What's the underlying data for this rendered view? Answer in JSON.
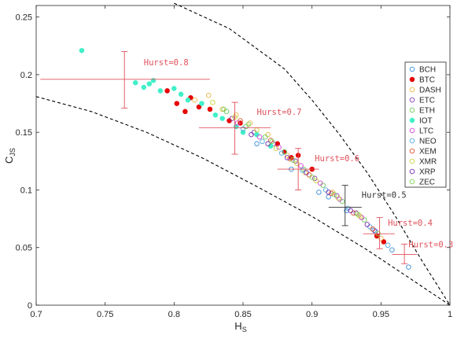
{
  "chart_data": {
    "type": "scatter",
    "xlabel": "H",
    "xlabel_sub": "S",
    "ylabel": "C",
    "ylabel_sub": "JS",
    "xlim": [
      0.7,
      1.0
    ],
    "ylim": [
      0,
      0.26
    ],
    "xticks": [
      "0.7",
      "0.75",
      "0.8",
      "0.85",
      "0.9",
      "0.95",
      "1"
    ],
    "xtick_values": [
      0.7,
      0.75,
      0.8,
      0.85,
      0.9,
      0.95,
      1.0
    ],
    "yticks": [
      "0",
      "0.05",
      "0.1",
      "0.15",
      "0.2",
      "0.25"
    ],
    "ytick_values": [
      0,
      0.05,
      0.1,
      0.15,
      0.2,
      0.25
    ],
    "grid": false,
    "legend_position": "right",
    "series": [
      {
        "name": "BCH",
        "color": "#3b8fd9",
        "marker": "open-circle",
        "points": [
          [
            0.885,
            0.118
          ],
          [
            0.905,
            0.098
          ],
          [
            0.925,
            0.082
          ],
          [
            0.945,
            0.065
          ],
          [
            0.958,
            0.048
          ],
          [
            0.97,
            0.033
          ],
          [
            0.86,
            0.14
          ],
          [
            0.912,
            0.094
          ]
        ]
      },
      {
        "name": "BTC",
        "color": "#e60000",
        "marker": "filled-circle",
        "points": [
          [
            0.795,
            0.186
          ],
          [
            0.802,
            0.175
          ],
          [
            0.808,
            0.168
          ],
          [
            0.812,
            0.18
          ],
          [
            0.818,
            0.172
          ],
          [
            0.826,
            0.17
          ],
          [
            0.84,
            0.16
          ],
          [
            0.848,
            0.158
          ],
          [
            0.875,
            0.14
          ],
          [
            0.88,
            0.133
          ],
          [
            0.885,
            0.128
          ],
          [
            0.89,
            0.13
          ],
          [
            0.947,
            0.06
          ],
          [
            0.952,
            0.055
          ],
          [
            0.9,
            0.118
          ]
        ]
      },
      {
        "name": "DASH",
        "color": "#e8b84a",
        "marker": "open-circle",
        "points": [
          [
            0.815,
            0.178
          ],
          [
            0.825,
            0.182
          ],
          [
            0.835,
            0.17
          ],
          [
            0.845,
            0.165
          ],
          [
            0.855,
            0.158
          ],
          [
            0.868,
            0.148
          ],
          [
            0.882,
            0.13
          ],
          [
            0.895,
            0.115
          ],
          [
            0.915,
            0.098
          ],
          [
            0.935,
            0.077
          ],
          [
            0.95,
            0.058
          ]
        ]
      },
      {
        "name": "ETC",
        "color": "#8a3fb0",
        "marker": "open-circle",
        "points": [
          [
            0.842,
            0.162
          ],
          [
            0.858,
            0.15
          ],
          [
            0.872,
            0.14
          ],
          [
            0.888,
            0.125
          ],
          [
            0.902,
            0.11
          ],
          [
            0.918,
            0.095
          ],
          [
            0.932,
            0.08
          ],
          [
            0.946,
            0.064
          ]
        ]
      },
      {
        "name": "ETH",
        "color": "#6fc95c",
        "marker": "open-circle",
        "points": [
          [
            0.838,
            0.168
          ],
          [
            0.852,
            0.155
          ],
          [
            0.866,
            0.146
          ],
          [
            0.88,
            0.133
          ],
          [
            0.894,
            0.118
          ],
          [
            0.908,
            0.104
          ],
          [
            0.922,
            0.09
          ],
          [
            0.938,
            0.074
          ]
        ]
      },
      {
        "name": "IOT",
        "color": "#40f0c8",
        "marker": "filled-circle",
        "points": [
          [
            0.733,
            0.221
          ],
          [
            0.772,
            0.193
          ],
          [
            0.778,
            0.189
          ],
          [
            0.782,
            0.192
          ],
          [
            0.785,
            0.195
          ],
          [
            0.79,
            0.186
          ],
          [
            0.8,
            0.188
          ],
          [
            0.805,
            0.183
          ],
          [
            0.81,
            0.178
          ],
          [
            0.82,
            0.175
          ],
          [
            0.83,
            0.165
          ],
          [
            0.835,
            0.162
          ],
          [
            0.845,
            0.155
          ],
          [
            0.85,
            0.15
          ],
          [
            0.86,
            0.148
          ],
          [
            0.87,
            0.138
          ]
        ]
      },
      {
        "name": "LTC",
        "color": "#d24ad2",
        "marker": "open-circle",
        "points": [
          [
            0.846,
            0.158
          ],
          [
            0.862,
            0.146
          ],
          [
            0.876,
            0.137
          ],
          [
            0.892,
            0.121
          ],
          [
            0.906,
            0.106
          ],
          [
            0.92,
            0.092
          ],
          [
            0.936,
            0.076
          ]
        ]
      },
      {
        "name": "NEO",
        "color": "#55a8e0",
        "marker": "open-circle",
        "points": [
          [
            0.85,
            0.153
          ],
          [
            0.864,
            0.142
          ],
          [
            0.878,
            0.132
          ],
          [
            0.893,
            0.117
          ],
          [
            0.91,
            0.1
          ],
          [
            0.926,
            0.084
          ],
          [
            0.942,
            0.068
          ],
          [
            0.955,
            0.052
          ]
        ]
      },
      {
        "name": "XEM",
        "color": "#e0542e",
        "marker": "open-circle",
        "points": [
          [
            0.848,
            0.16
          ],
          [
            0.87,
            0.143
          ],
          [
            0.884,
            0.127
          ],
          [
            0.898,
            0.113
          ],
          [
            0.914,
            0.097
          ],
          [
            0.93,
            0.08
          ],
          [
            0.944,
            0.066
          ]
        ]
      },
      {
        "name": "XMR",
        "color": "#c9d640",
        "marker": "open-circle",
        "points": [
          [
            0.828,
            0.176
          ],
          [
            0.844,
            0.163
          ],
          [
            0.86,
            0.152
          ],
          [
            0.874,
            0.136
          ],
          [
            0.889,
            0.123
          ],
          [
            0.903,
            0.108
          ],
          [
            0.919,
            0.093
          ],
          [
            0.934,
            0.078
          ]
        ]
      },
      {
        "name": "XRP",
        "color": "#7a2fb0",
        "marker": "open-circle",
        "points": [
          [
            0.856,
            0.148
          ],
          [
            0.868,
            0.14
          ],
          [
            0.882,
            0.128
          ],
          [
            0.896,
            0.115
          ],
          [
            0.912,
            0.098
          ],
          [
            0.928,
            0.082
          ],
          [
            0.94,
            0.07
          ]
        ]
      },
      {
        "name": "ZEC",
        "color": "#7ed35a",
        "marker": "open-circle",
        "points": [
          [
            0.836,
            0.17
          ],
          [
            0.854,
            0.157
          ],
          [
            0.871,
            0.142
          ],
          [
            0.886,
            0.126
          ],
          [
            0.9,
            0.111
          ],
          [
            0.916,
            0.096
          ],
          [
            0.933,
            0.079
          ],
          [
            0.948,
            0.062
          ]
        ]
      }
    ],
    "boundary_curves": [
      {
        "name": "",
        "style": "dashed",
        "color": "#000000",
        "points": [
          [
            0.8,
            0.262
          ],
          [
            0.84,
            0.24
          ],
          [
            0.88,
            0.205
          ],
          [
            0.9,
            0.178
          ],
          [
            0.92,
            0.148
          ],
          [
            0.94,
            0.115
          ],
          [
            0.96,
            0.078
          ],
          [
            0.98,
            0.038
          ],
          [
            1.0,
            0.0
          ]
        ]
      },
      {
        "name": "",
        "style": "dashed",
        "color": "#000000",
        "points": [
          [
            0.7,
            0.181
          ],
          [
            0.74,
            0.168
          ],
          [
            0.78,
            0.15
          ],
          [
            0.82,
            0.128
          ],
          [
            0.86,
            0.103
          ],
          [
            0.9,
            0.077
          ],
          [
            0.94,
            0.048
          ],
          [
            0.97,
            0.024
          ],
          [
            1.0,
            0.0
          ]
        ]
      }
    ],
    "hurst_markers": [
      {
        "label": "Hurst=0.8",
        "color": "#e0505a",
        "x": 0.764,
        "y": 0.196,
        "xerr": [
          0.703,
          0.826
        ],
        "yerr": [
          0.171,
          0.22
        ],
        "label_pos": [
          0.778,
          0.208
        ]
      },
      {
        "label": "Hurst=0.7",
        "color": "#e0505a",
        "x": 0.844,
        "y": 0.154,
        "xerr": [
          0.818,
          0.87
        ],
        "yerr": [
          0.131,
          0.176
        ],
        "label_pos": [
          0.86,
          0.165
        ]
      },
      {
        "label": "Hurst=0.6",
        "color": "#e0505a",
        "x": 0.89,
        "y": 0.118,
        "xerr": [
          0.875,
          0.905
        ],
        "yerr": [
          0.1,
          0.136
        ],
        "label_pos": [
          0.902,
          0.125
        ]
      },
      {
        "label": "Hurst=0.5",
        "color": "#333333",
        "x": 0.924,
        "y": 0.085,
        "xerr": [
          0.912,
          0.936
        ],
        "yerr": [
          0.069,
          0.104
        ],
        "label_pos": [
          0.936,
          0.093
        ]
      },
      {
        "label": "Hurst=0.4",
        "color": "#e0505a",
        "x": 0.949,
        "y": 0.062,
        "xerr": [
          0.937,
          0.96
        ],
        "yerr": [
          0.049,
          0.076
        ],
        "label_pos": [
          0.955,
          0.069
        ]
      },
      {
        "label": "Hurst=0.3",
        "color": "#e0505a",
        "x": 0.967,
        "y": 0.044,
        "xerr": [
          0.958,
          0.976
        ],
        "yerr": [
          0.036,
          0.053
        ],
        "label_pos": [
          0.97,
          0.05
        ]
      }
    ]
  }
}
